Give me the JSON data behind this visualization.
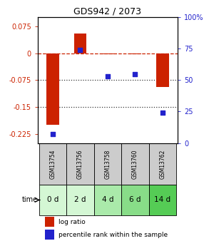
{
  "title": "GDS942 / 2073",
  "samples": [
    "GSM13754",
    "GSM13756",
    "GSM13758",
    "GSM13760",
    "GSM13762"
  ],
  "time_labels": [
    "0 d",
    "2 d",
    "4 d",
    "6 d",
    "14 d"
  ],
  "log_ratio": [
    -0.2,
    0.055,
    -0.003,
    -0.003,
    -0.095
  ],
  "percentile_rank": [
    7,
    74,
    53,
    55,
    24
  ],
  "bar_color": "#cc2200",
  "dot_color": "#2222cc",
  "ylim_left": [
    -0.25,
    0.1
  ],
  "ylim_right": [
    0,
    100
  ],
  "yticks_left": [
    0.075,
    0.0,
    -0.075,
    -0.15,
    -0.225
  ],
  "ytick_labels_left": [
    "0.075",
    "0",
    "-0.075",
    "-0.15",
    "-0.225"
  ],
  "yticks_right": [
    100,
    75,
    50,
    25,
    0
  ],
  "ytick_labels_right": [
    "100%",
    "75",
    "50",
    "25",
    "0"
  ],
  "hline_zero_color": "#cc2200",
  "hline_dotted_color": "#333333",
  "hline_positions": [
    -0.075,
    -0.15
  ],
  "sample_bg_color": "#cccccc",
  "time_bg_colors": [
    "#d4f7d4",
    "#d4f7d4",
    "#aaeaaa",
    "#88dd88",
    "#55cc55"
  ],
  "legend_items": [
    "log ratio",
    "percentile rank within the sample"
  ],
  "bar_width": 0.45,
  "title_fontsize": 9,
  "tick_fontsize": 7,
  "legend_fontsize": 6.5,
  "sample_fontsize": 5.5,
  "time_fontsize": 7.5
}
